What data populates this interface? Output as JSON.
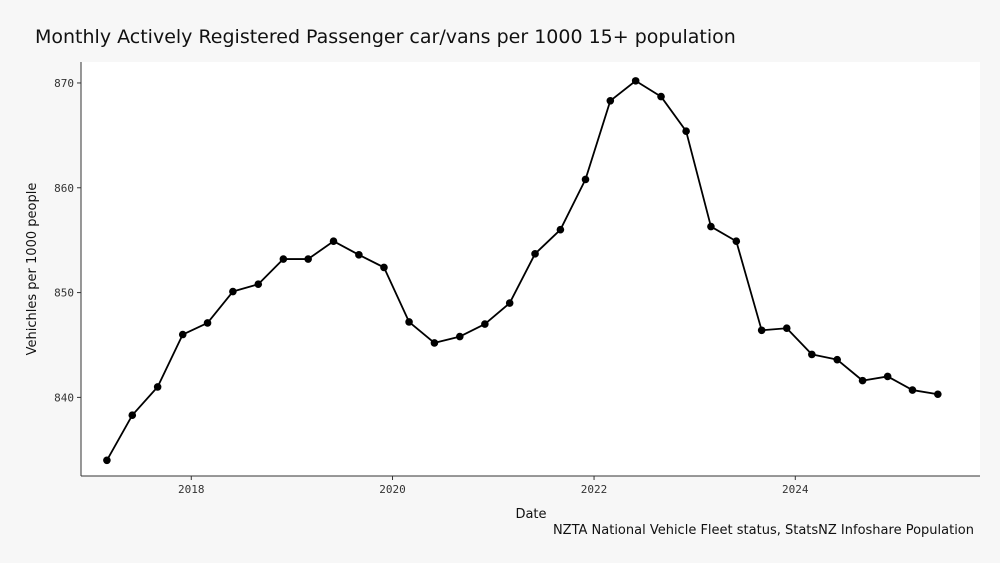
{
  "chart_data": {
    "type": "line",
    "title": "Monthly Actively Registered Passenger car/vans per 1000 15+ population",
    "xlabel": "Date",
    "ylabel": "Vehichles per 1000 people",
    "caption": "NZTA National Vehicle Fleet status, StatsNZ Infoshare Population",
    "xlim": [
      "2016-11-27",
      "2025-11-01"
    ],
    "ylim": [
      832.5,
      872
    ],
    "x_ticks": [
      {
        "value": "2018-01-01",
        "label": "2018"
      },
      {
        "value": "2020-01-01",
        "label": "2020"
      },
      {
        "value": "2022-01-01",
        "label": "2022"
      },
      {
        "value": "2024-01-01",
        "label": "2024"
      }
    ],
    "y_ticks": [
      {
        "value": 840,
        "label": "840"
      },
      {
        "value": 850,
        "label": "850"
      },
      {
        "value": 860,
        "label": "860"
      },
      {
        "value": 870,
        "label": "870"
      }
    ],
    "grid": false,
    "marker": "circle",
    "line_color": "#000000",
    "series": [
      {
        "x": [
          "2017-03-01",
          "2017-06-01",
          "2017-09-01",
          "2017-12-01",
          "2018-03-01",
          "2018-06-01",
          "2018-09-01",
          "2018-12-01",
          "2019-03-01",
          "2019-06-01",
          "2019-09-01",
          "2019-12-01",
          "2020-03-01",
          "2020-06-01",
          "2020-09-01",
          "2020-12-01",
          "2021-03-01",
          "2021-06-01",
          "2021-09-01",
          "2021-12-01",
          "2022-03-01",
          "2022-06-01",
          "2022-09-01",
          "2022-12-01",
          "2023-03-01",
          "2023-06-01",
          "2023-09-01",
          "2023-12-01",
          "2024-03-01",
          "2024-06-01",
          "2024-09-01",
          "2024-12-01",
          "2025-03-01",
          "2025-06-01"
        ],
        "y": [
          834.0,
          838.3,
          841.0,
          846.0,
          847.1,
          850.1,
          850.8,
          853.2,
          853.2,
          854.9,
          853.6,
          852.4,
          847.2,
          845.2,
          845.8,
          847.0,
          849.0,
          853.7,
          856.0,
          860.8,
          868.3,
          870.2,
          868.7,
          865.4,
          856.3,
          854.9,
          846.4,
          846.6,
          844.1,
          843.6,
          841.6,
          842.0,
          840.7,
          840.3
        ]
      }
    ]
  }
}
